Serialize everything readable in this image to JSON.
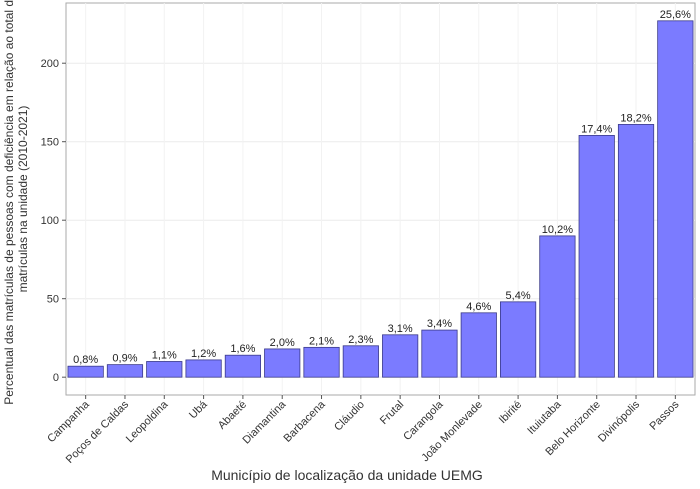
{
  "chart_data": {
    "type": "bar",
    "xlabel": "Município de localização da unidade UEMG",
    "ylabel": [
      "Percentual das matrículas de pessoas com deficiência em relação ao total de",
      "matrículas na unidade (2010-2021)"
    ],
    "categories": [
      "Campanha",
      "Poços de Caldas",
      "Leopoldina",
      "Ubá",
      "Abaeté",
      "Diamantina",
      "Barbacena",
      "Cláudio",
      "Frutal",
      "Carangola",
      "João Monlevade",
      "Ibirité",
      "Ituiutaba",
      "Belo Horizonte",
      "Divinópolis",
      "Passos"
    ],
    "values": [
      7,
      8,
      10,
      11,
      14,
      18,
      19,
      20,
      27,
      30,
      41,
      48,
      90,
      154,
      161,
      227
    ],
    "value_labels": [
      "0,8%",
      "0,9%",
      "1,1%",
      "1,2%",
      "1,6%",
      "2,0%",
      "2,1%",
      "2,3%",
      "3,1%",
      "3,4%",
      "4,6%",
      "5,4%",
      "10,2%",
      "17,4%",
      "18,2%",
      "25,6%"
    ],
    "color": "#7b7bff",
    "ylim": [
      -11.35,
      238.35
    ],
    "yticks": [
      0,
      50,
      100,
      150,
      200
    ],
    "grid": true
  }
}
